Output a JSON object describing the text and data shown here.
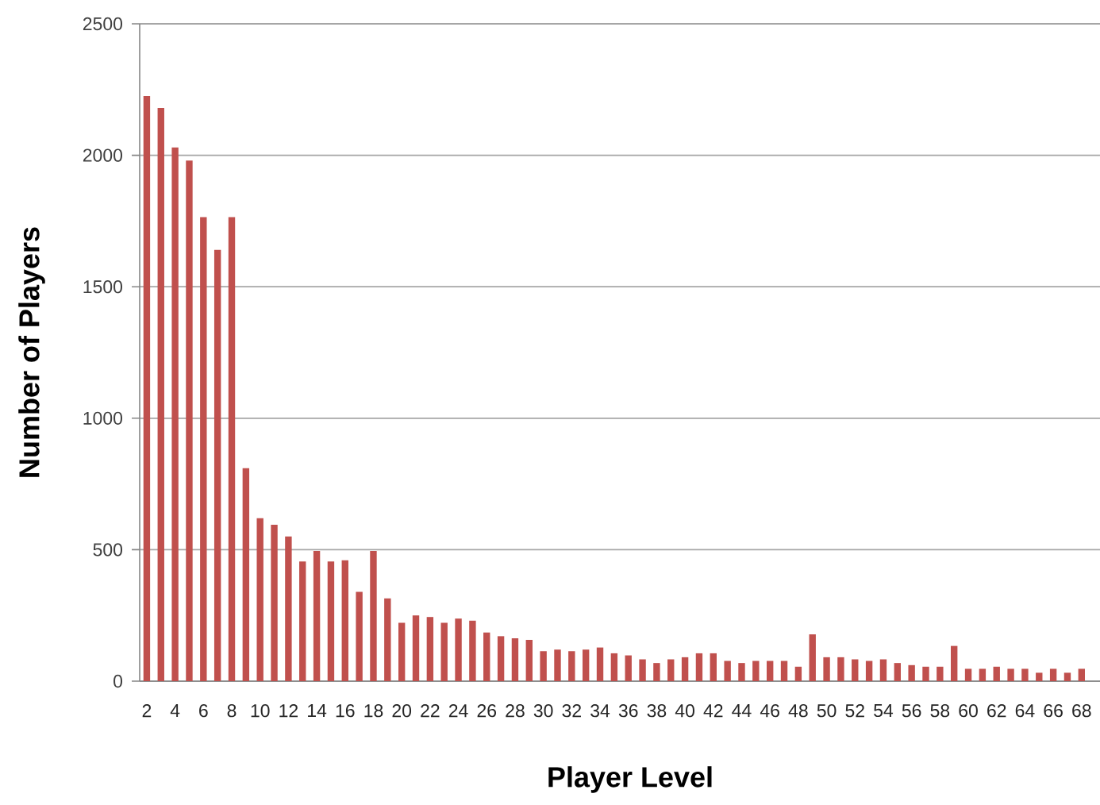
{
  "chart_data": {
    "type": "bar",
    "xlabel": "Player Level",
    "ylabel": "Number of Players",
    "categories": [
      "2",
      null,
      "4",
      null,
      "6",
      null,
      "8",
      null,
      "10",
      null,
      "12",
      null,
      "14",
      null,
      "16",
      null,
      "18",
      null,
      "20",
      null,
      "22",
      null,
      "24",
      null,
      "26",
      null,
      "28",
      null,
      "30",
      null,
      "32",
      null,
      "34",
      null,
      "36",
      null,
      "38",
      null,
      "40",
      null,
      "42",
      null,
      "44",
      null,
      "46",
      null,
      "48",
      null,
      "50",
      null,
      "52",
      null,
      "54",
      null,
      "56",
      null,
      "58",
      null,
      "60",
      null,
      "62",
      null,
      "64",
      null,
      "66",
      null,
      "68"
    ],
    "values": [
      2225,
      2180,
      2030,
      1980,
      1765,
      1640,
      1765,
      810,
      620,
      595,
      550,
      455,
      495,
      455,
      460,
      340,
      495,
      315,
      222,
      250,
      244,
      222,
      238,
      230,
      185,
      171,
      163,
      157,
      114,
      120,
      114,
      120,
      128,
      106,
      98,
      83,
      69,
      83,
      91,
      106,
      106,
      77,
      69,
      77,
      77,
      77,
      55,
      178,
      91,
      91,
      83,
      77,
      83,
      69,
      61,
      55,
      55,
      134,
      47,
      47,
      55,
      47,
      47,
      32,
      47,
      32,
      47
    ],
    "color": "#c0504d",
    "ylim": [
      0,
      2500
    ],
    "yticks": [
      0,
      500,
      1000,
      1500,
      2000,
      2500
    ],
    "grid": "y"
  }
}
